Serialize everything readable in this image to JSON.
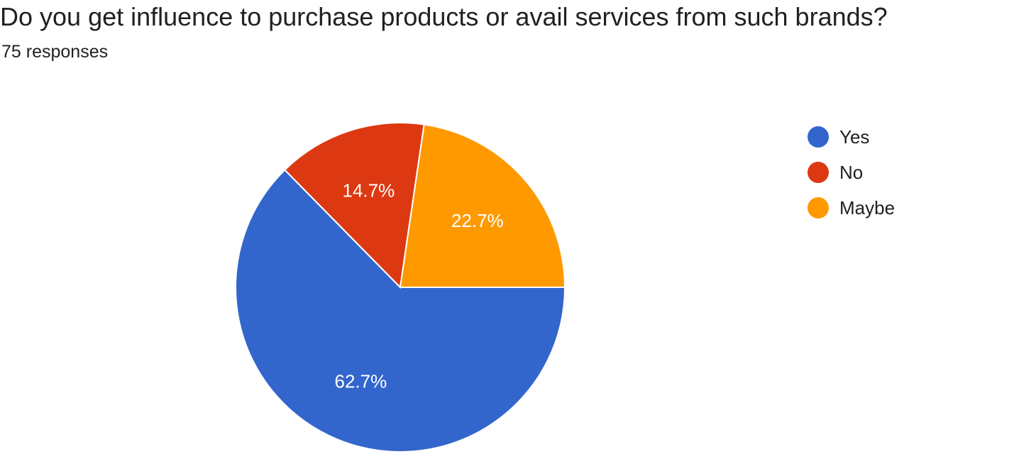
{
  "question": {
    "title": "Do you get influence to purchase products or avail services from such brands?",
    "responses": "75 responses"
  },
  "chart_data": {
    "type": "pie",
    "labels": [
      "Yes",
      "No",
      "Maybe"
    ],
    "values": [
      62.7,
      14.7,
      22.7
    ],
    "value_labels": [
      "62.7%",
      "14.7%",
      "22.7%"
    ],
    "colors": [
      "#3366cc",
      "#dc3912",
      "#ff9900"
    ],
    "legend_position": "right"
  },
  "legend": {
    "items": [
      {
        "label": "Yes",
        "color": "#3366cc"
      },
      {
        "label": "No",
        "color": "#dc3912"
      },
      {
        "label": "Maybe",
        "color": "#ff9900"
      }
    ]
  }
}
